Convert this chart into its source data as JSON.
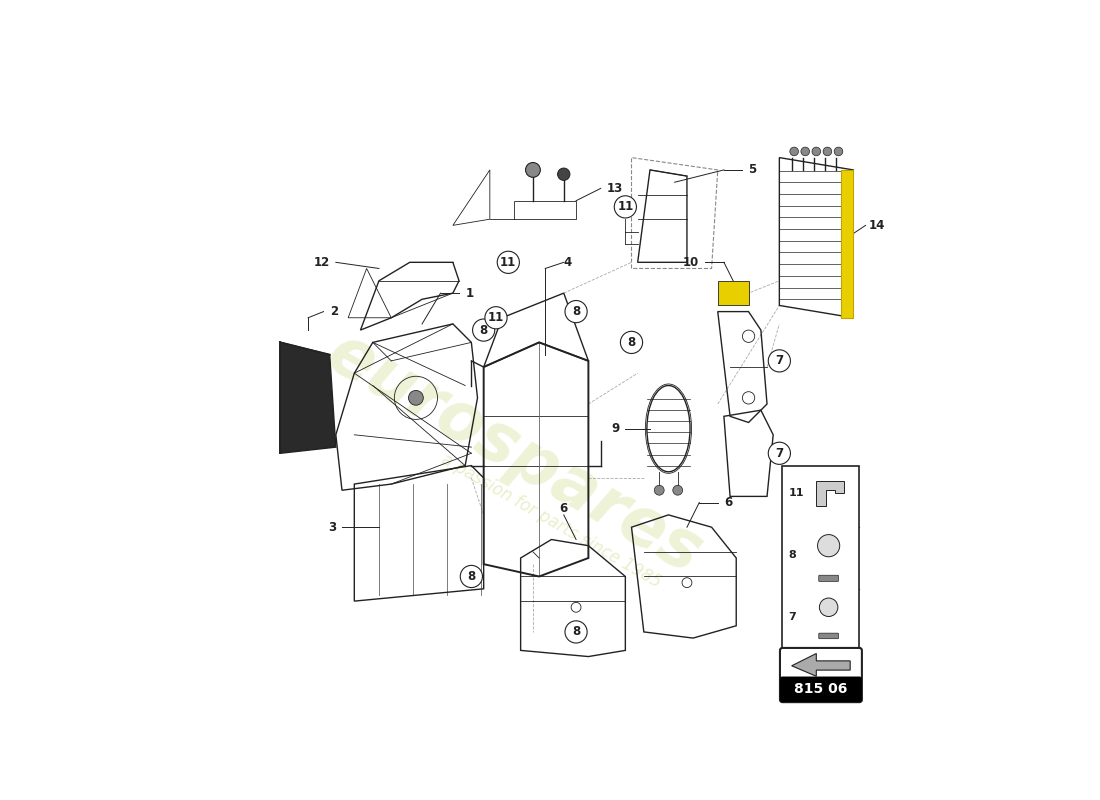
{
  "bg_color": "#ffffff",
  "watermark_text": "eurospares",
  "watermark_subtext": "a passion for parts since 1985",
  "watermark_color": "#c8d87a",
  "part_number_box": "815 06",
  "line_color": "#222222",
  "label_fontsize": 9,
  "circle_label_r": 0.018
}
